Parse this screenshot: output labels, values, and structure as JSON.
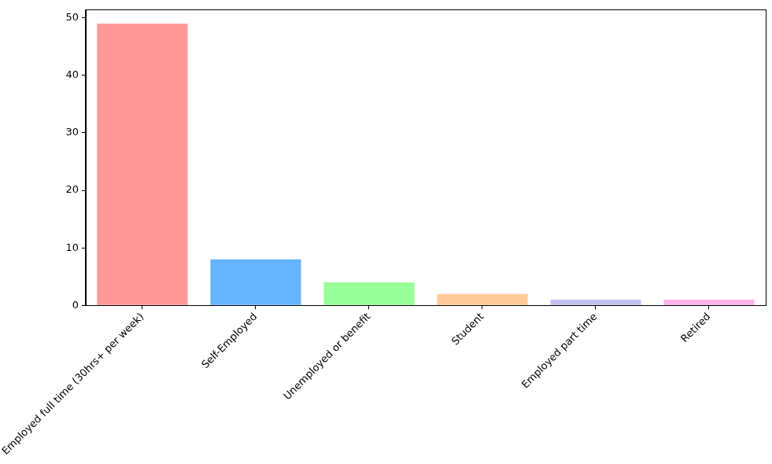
{
  "chart_data": {
    "type": "bar",
    "categories": [
      "Employed full time (30hrs+ per week)",
      "Self-Employed",
      "Unemployed or benefit",
      "Student",
      "Employed part time",
      "Retired"
    ],
    "values": [
      49,
      8,
      4,
      2,
      1,
      1
    ],
    "colors": [
      "#ff9999",
      "#66b3ff",
      "#99ff99",
      "#ffcc99",
      "#c2c2f0",
      "#ffb3e6"
    ],
    "ylim": [
      0,
      51.45
    ],
    "yticks": [
      0,
      10,
      20,
      30,
      40,
      50
    ],
    "grid": false
  }
}
